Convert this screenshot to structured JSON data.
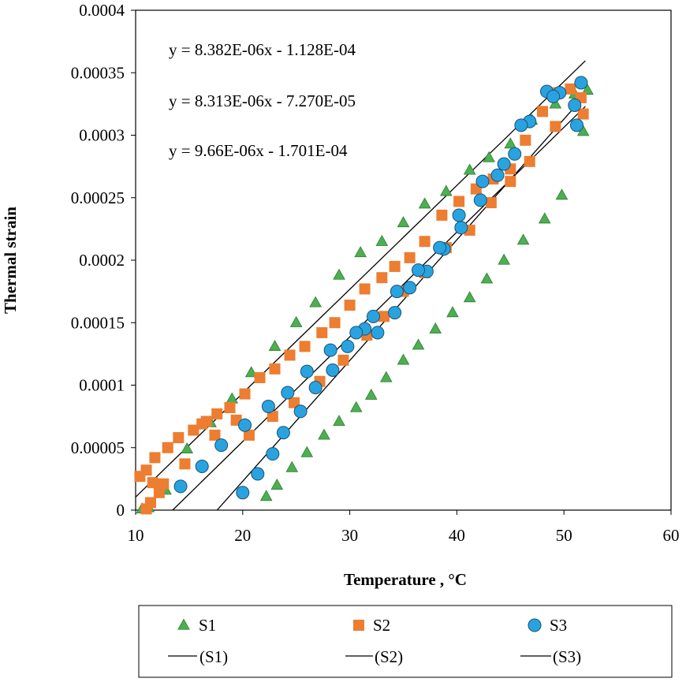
{
  "chart_data": {
    "type": "scatter",
    "title": "",
    "xlabel": "Temperature , °C",
    "ylabel": "Thermal strain",
    "xlim": [
      10,
      60
    ],
    "ylim": [
      0,
      0.0004
    ],
    "x_ticks": [
      "10",
      "20",
      "30",
      "40",
      "50",
      "60"
    ],
    "y_ticks": [
      "0",
      "0.00005",
      "0.0001",
      "0.00015",
      "0.0002",
      "0.00025",
      "0.0003",
      "0.00035",
      "0.0004"
    ],
    "grid": false,
    "legend_position": "bottom",
    "equations": [
      "y = 8.382E-06x - 1.128E-04",
      "y = 8.313E-06x - 7.270E-05",
      "y = 9.66E-06x - 1.701E-04"
    ],
    "series": [
      {
        "name": "S1",
        "marker": "triangle",
        "color": "#4caf50",
        "points": [
          [
            10.6,
            1e-06
          ],
          [
            11.2,
            2e-06
          ],
          [
            12.8,
            1.6e-05
          ],
          [
            14.8,
            4.9e-05
          ],
          [
            17.0,
            7e-05
          ],
          [
            19.0,
            8.9e-05
          ],
          [
            20.8,
            0.00011
          ],
          [
            23.0,
            0.000131
          ],
          [
            25.0,
            0.00015
          ],
          [
            26.8,
            0.000166
          ],
          [
            29.0,
            0.000188
          ],
          [
            31.0,
            0.000206
          ],
          [
            33.0,
            0.000215
          ],
          [
            35.0,
            0.00023
          ],
          [
            37.0,
            0.000245
          ],
          [
            39.0,
            0.000255
          ],
          [
            41.2,
            0.000272
          ],
          [
            43.0,
            0.000282
          ],
          [
            45.0,
            0.000293
          ],
          [
            47.0,
            0.000312
          ],
          [
            49.2,
            0.000325
          ],
          [
            51.0,
            0.000333
          ],
          [
            52.2,
            0.000336
          ],
          [
            51.8,
            0.000303
          ],
          [
            49.8,
            0.000252
          ],
          [
            48.2,
            0.000233
          ],
          [
            46.2,
            0.000216
          ],
          [
            44.4,
            0.0002
          ],
          [
            42.8,
            0.000185
          ],
          [
            41.2,
            0.00017
          ],
          [
            39.6,
            0.000158
          ],
          [
            38.0,
            0.000145
          ],
          [
            36.4,
            0.000132
          ],
          [
            35.0,
            0.00012
          ],
          [
            33.4,
            0.000106
          ],
          [
            32.0,
            9.2e-05
          ],
          [
            30.6,
            8.2e-05
          ],
          [
            29.0,
            7.1e-05
          ],
          [
            27.6,
            6e-05
          ],
          [
            26.0,
            4.6e-05
          ],
          [
            24.6,
            3.4e-05
          ],
          [
            23.2,
            2e-05
          ],
          [
            22.2,
            1.1e-05
          ]
        ]
      },
      {
        "name": "S2",
        "marker": "square",
        "color": "#ed7d31",
        "points": [
          [
            10.4,
            2.7e-05
          ],
          [
            11.0,
            3.2e-05
          ],
          [
            11.6,
            2.2e-05
          ],
          [
            12.2,
            1.4e-05
          ],
          [
            11.4,
            6e-06
          ],
          [
            11.0,
            1e-06
          ],
          [
            11.8,
            4.2e-05
          ],
          [
            13.0,
            5e-05
          ],
          [
            14.0,
            5.8e-05
          ],
          [
            15.4,
            6.4e-05
          ],
          [
            16.6,
            7.1e-05
          ],
          [
            17.6,
            7.7e-05
          ],
          [
            18.8,
            8.2e-05
          ],
          [
            20.2,
            9.3e-05
          ],
          [
            21.6,
            0.000106
          ],
          [
            23.0,
            0.000113
          ],
          [
            24.4,
            0.000124
          ],
          [
            25.8,
            0.000131
          ],
          [
            27.4,
            0.000142
          ],
          [
            28.6,
            0.00015
          ],
          [
            30.0,
            0.000164
          ],
          [
            31.4,
            0.000177
          ],
          [
            33.0,
            0.000186
          ],
          [
            34.2,
            0.000195
          ],
          [
            35.6,
            0.000202
          ],
          [
            37.0,
            0.000215
          ],
          [
            38.6,
            0.000236
          ],
          [
            40.2,
            0.000247
          ],
          [
            41.8,
            0.000257
          ],
          [
            43.4,
            0.000265
          ],
          [
            45.0,
            0.000273
          ],
          [
            46.4,
            0.000296
          ],
          [
            48.0,
            0.000319
          ],
          [
            49.4,
            0.000334
          ],
          [
            50.6,
            0.000337
          ],
          [
            51.6,
            0.00033
          ],
          [
            51.8,
            0.000317
          ],
          [
            49.2,
            0.000307
          ],
          [
            46.8,
            0.000279
          ],
          [
            45.0,
            0.000263
          ],
          [
            43.2,
            0.000246
          ],
          [
            41.2,
            0.000224
          ],
          [
            39.0,
            0.00021
          ],
          [
            37.0,
            0.00019
          ],
          [
            35.0,
            0.000175
          ],
          [
            33.2,
            0.000155
          ],
          [
            31.6,
            0.00014
          ],
          [
            29.4,
            0.00012
          ],
          [
            27.2,
            0.000103
          ],
          [
            24.8,
            8.6e-05
          ],
          [
            22.8,
            7.5e-05
          ],
          [
            20.6,
            6e-05
          ],
          [
            19.4,
            7.2e-05
          ],
          [
            17.4,
            6e-05
          ],
          [
            16.2,
            6.9e-05
          ],
          [
            14.6,
            3.7e-05
          ],
          [
            12.6,
            2.1e-05
          ]
        ]
      },
      {
        "name": "S3",
        "marker": "circle",
        "color": "#29a3e0",
        "points": [
          [
            14.2,
            1.9e-05
          ],
          [
            16.2,
            3.5e-05
          ],
          [
            18.0,
            5.2e-05
          ],
          [
            20.0,
            1.4e-05
          ],
          [
            21.4,
            2.9e-05
          ],
          [
            22.8,
            4.5e-05
          ],
          [
            23.8,
            6.2e-05
          ],
          [
            25.4,
            7.9e-05
          ],
          [
            26.8,
            9.8e-05
          ],
          [
            28.4,
            0.000112
          ],
          [
            29.8,
            0.000131
          ],
          [
            31.4,
            0.000145
          ],
          [
            32.6,
            0.000142
          ],
          [
            34.2,
            0.000158
          ],
          [
            35.6,
            0.000178
          ],
          [
            37.2,
            0.000191
          ],
          [
            38.8,
            0.000209
          ],
          [
            40.4,
            0.000226
          ],
          [
            42.2,
            0.000248
          ],
          [
            43.8,
            0.000268
          ],
          [
            45.4,
            0.000285
          ],
          [
            46.8,
            0.000311
          ],
          [
            48.4,
            0.000335
          ],
          [
            49.6,
            0.000334
          ],
          [
            51.0,
            0.000324
          ],
          [
            51.6,
            0.000342
          ],
          [
            51.2,
            0.000308
          ],
          [
            49.0,
            0.000331
          ],
          [
            46.0,
            0.000308
          ],
          [
            44.4,
            0.000277
          ],
          [
            42.4,
            0.000263
          ],
          [
            40.2,
            0.000236
          ],
          [
            38.4,
            0.00021
          ],
          [
            36.4,
            0.000192
          ],
          [
            34.4,
            0.000175
          ],
          [
            32.2,
            0.000155
          ],
          [
            30.6,
            0.000142
          ],
          [
            28.2,
            0.000128
          ],
          [
            26.0,
            0.000111
          ],
          [
            24.2,
            9.4e-05
          ],
          [
            22.4,
            8.3e-05
          ],
          [
            20.2,
            6.8e-05
          ]
        ]
      }
    ],
    "trendlines": [
      {
        "name": "(S1)",
        "slope": 8.382e-06,
        "intercept": -0.0001128
      },
      {
        "name": "(S2)",
        "slope": 8.313e-06,
        "intercept": -7.27e-05
      },
      {
        "name": "(S3)",
        "slope": 9.66e-06,
        "intercept": -0.0001701
      }
    ],
    "trendline_range": [
      10,
      52
    ],
    "legend": {
      "markers": [
        "S1",
        "S2",
        "S3"
      ],
      "lines": [
        "(S1)",
        "(S2)",
        "(S3)"
      ]
    }
  }
}
